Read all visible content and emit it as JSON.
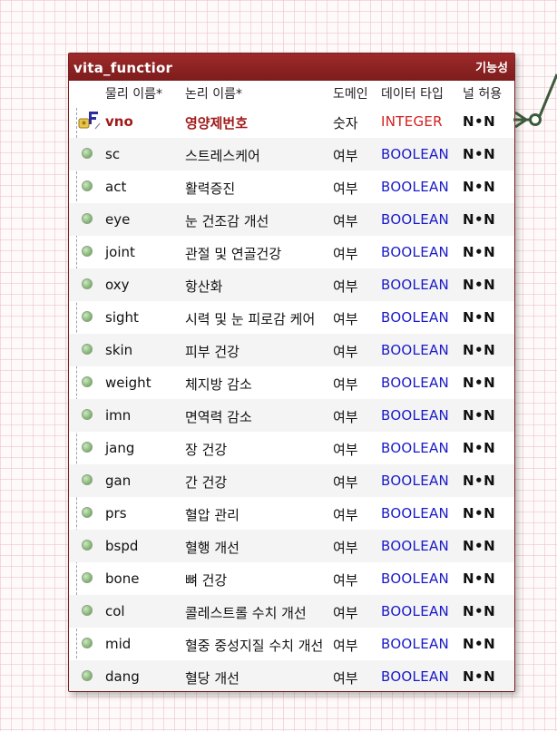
{
  "entity": {
    "title": "vita_functior",
    "subject": "기능성",
    "columns": {
      "physical": "물리 이름*",
      "logical": "논리 이름*",
      "domain": "도메인",
      "datatype": "데이터 타입",
      "nullable": "널 허용"
    },
    "rows": [
      {
        "physical": "vno",
        "logical": "영양제번호",
        "domain": "숫자",
        "datatype": "INTEGER",
        "nullable": "N•N",
        "key": "pk-fk"
      },
      {
        "physical": "sc",
        "logical": "스트레스케어",
        "domain": "여부",
        "datatype": "BOOLEAN",
        "nullable": "N•N",
        "key": "none"
      },
      {
        "physical": "act",
        "logical": "활력증진",
        "domain": "여부",
        "datatype": "BOOLEAN",
        "nullable": "N•N",
        "key": "none"
      },
      {
        "physical": "eye",
        "logical": "눈 건조감 개선",
        "domain": "여부",
        "datatype": "BOOLEAN",
        "nullable": "N•N",
        "key": "none"
      },
      {
        "physical": "joint",
        "logical": "관절 및 연골건강",
        "domain": "여부",
        "datatype": "BOOLEAN",
        "nullable": "N•N",
        "key": "none"
      },
      {
        "physical": "oxy",
        "logical": "항산화",
        "domain": "여부",
        "datatype": "BOOLEAN",
        "nullable": "N•N",
        "key": "none"
      },
      {
        "physical": "sight",
        "logical": "시력 및 눈 피로감 케어",
        "domain": "여부",
        "datatype": "BOOLEAN",
        "nullable": "N•N",
        "key": "none"
      },
      {
        "physical": "skin",
        "logical": "피부 건강",
        "domain": "여부",
        "datatype": "BOOLEAN",
        "nullable": "N•N",
        "key": "none"
      },
      {
        "physical": "weight",
        "logical": "체지방 감소",
        "domain": "여부",
        "datatype": "BOOLEAN",
        "nullable": "N•N",
        "key": "none"
      },
      {
        "physical": "imn",
        "logical": "면역력 감소",
        "domain": "여부",
        "datatype": "BOOLEAN",
        "nullable": "N•N",
        "key": "none"
      },
      {
        "physical": "jang",
        "logical": "장 건강",
        "domain": "여부",
        "datatype": "BOOLEAN",
        "nullable": "N•N",
        "key": "none"
      },
      {
        "physical": "gan",
        "logical": "간 건강",
        "domain": "여부",
        "datatype": "BOOLEAN",
        "nullable": "N•N",
        "key": "none"
      },
      {
        "physical": "prs",
        "logical": "혈압 관리",
        "domain": "여부",
        "datatype": "BOOLEAN",
        "nullable": "N•N",
        "key": "none"
      },
      {
        "physical": "bspd",
        "logical": "혈행 개선",
        "domain": "여부",
        "datatype": "BOOLEAN",
        "nullable": "N•N",
        "key": "none"
      },
      {
        "physical": "bone",
        "logical": "뼈 건강",
        "domain": "여부",
        "datatype": "BOOLEAN",
        "nullable": "N•N",
        "key": "none"
      },
      {
        "physical": "col",
        "logical": "콜레스트롤 수치 개선",
        "domain": "여부",
        "datatype": "BOOLEAN",
        "nullable": "N•N",
        "key": "none"
      },
      {
        "physical": "mid",
        "logical": "혈중 중성지질 수치 개선",
        "domain": "여부",
        "datatype": "BOOLEAN",
        "nullable": "N•N",
        "key": "none"
      },
      {
        "physical": "dang",
        "logical": "혈당 개선",
        "domain": "여부",
        "datatype": "BOOLEAN",
        "nullable": "N•N",
        "key": "none"
      }
    ]
  },
  "icons": {
    "pk_fk": "primary-foreign-key-icon",
    "column": "column-dot-icon",
    "relationship": "relationship-connector-icon"
  },
  "colors": {
    "header_bg": "#8b2222",
    "pk_text": "#a11a1a",
    "datatype_text": "#1919c8",
    "pk_datatype_text": "#d42020",
    "connector": "#3d5a3d"
  }
}
